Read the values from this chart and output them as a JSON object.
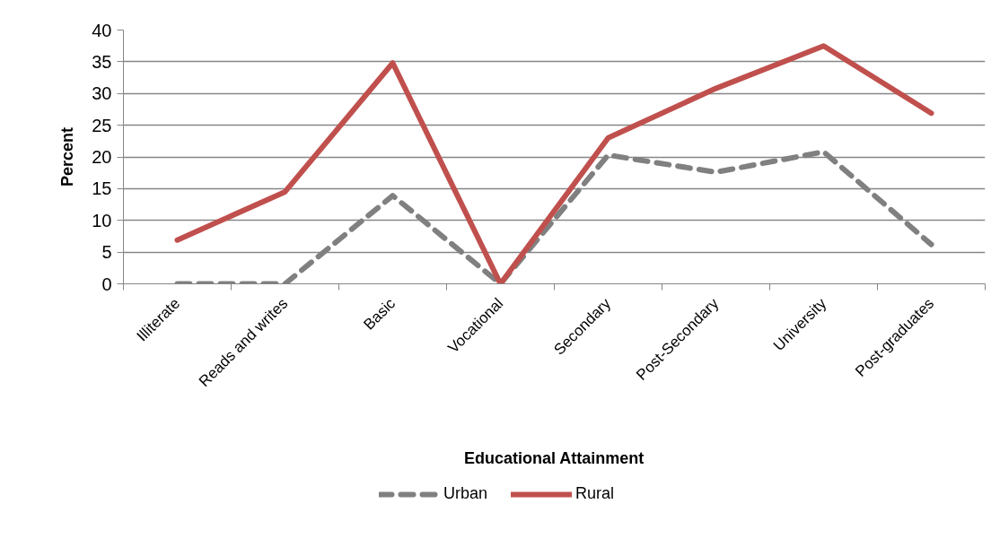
{
  "chart_data": {
    "type": "line",
    "xlabel": "Educational Attainment",
    "ylabel": "Percent",
    "categories": [
      "Illiterate",
      "Reads and writes",
      "Basic",
      "Vocational",
      "Secondary",
      "Post-Secondary",
      "University",
      "Post-graduates"
    ],
    "series": [
      {
        "name": "Urban",
        "color": "#808080",
        "line_style": "dashed",
        "values": [
          0,
          0,
          13.9,
          0,
          20.3,
          17.6,
          20.8,
          6.2
        ]
      },
      {
        "name": "Rural",
        "color": "#c0504d",
        "line_style": "solid",
        "values": [
          6.9,
          14.5,
          34.8,
          0,
          23.0,
          30.8,
          37.5,
          26.9
        ]
      }
    ],
    "ylim": [
      0,
      40
    ],
    "yticks": [
      0,
      5,
      10,
      15,
      20,
      25,
      30,
      35,
      40
    ],
    "grid": "y",
    "legend": "bottom"
  }
}
